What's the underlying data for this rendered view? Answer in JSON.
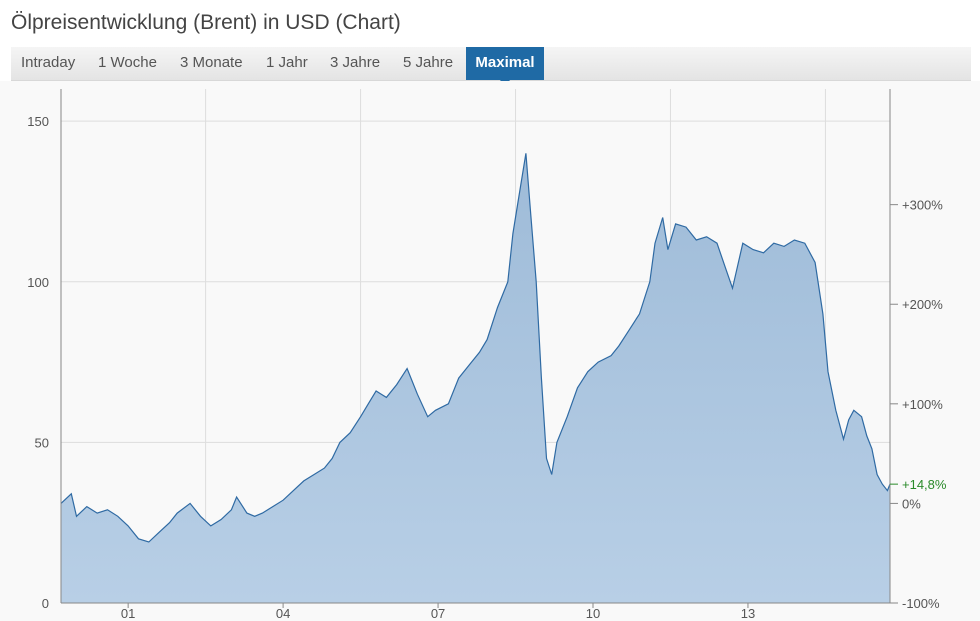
{
  "title": "Ölpreisentwicklung (Brent) in USD (Chart)",
  "tabs": [
    {
      "label": "Intraday",
      "active": false
    },
    {
      "label": "1 Woche",
      "active": false
    },
    {
      "label": "3 Monate",
      "active": false
    },
    {
      "label": "1 Jahr",
      "active": false
    },
    {
      "label": "3 Jahre",
      "active": false
    },
    {
      "label": "5 Jahre",
      "active": false
    },
    {
      "label": "Maximal",
      "active": true
    }
  ],
  "colors": {
    "accent": "#1f6aa5",
    "line": "#2f6aa3",
    "fill": "#a9c3dd",
    "positive": "#2a8a2a"
  },
  "chart_data": {
    "type": "area",
    "title": "",
    "xlabel": "",
    "ylabel": "",
    "x_ticks": [
      "01",
      "04",
      "07",
      "10",
      "13"
    ],
    "y_ticks": [
      0,
      50,
      100,
      150
    ],
    "y_ticks_right": [
      "-100%",
      "0%",
      "+100%",
      "+200%",
      "+300%"
    ],
    "current_change_label": "+14,8%",
    "ylim": [
      0,
      160
    ],
    "xlim": [
      1999.7,
      2015.75
    ],
    "grid": true,
    "series": [
      {
        "x": [
          1999.7,
          1999.9,
          2000.0,
          2000.2,
          2000.4,
          2000.6,
          2000.8,
          2001.0,
          2001.2,
          2001.4,
          2001.6,
          2001.8,
          2001.95,
          2002.2,
          2002.4,
          2002.6,
          2002.8,
          2003.0,
          2003.1,
          2003.3,
          2003.45,
          2003.6,
          2003.8,
          2004.0,
          2004.2,
          2004.4,
          2004.6,
          2004.8,
          2004.95,
          2005.1,
          2005.3,
          2005.5,
          2005.65,
          2005.8,
          2006.0,
          2006.2,
          2006.4,
          2006.6,
          2006.8,
          2006.95,
          2007.2,
          2007.4,
          2007.6,
          2007.8,
          2007.95,
          2008.15,
          2008.35,
          2008.45,
          2008.55,
          2008.7,
          2008.8,
          2008.9,
          2009.0,
          2009.1,
          2009.2,
          2009.3,
          2009.5,
          2009.7,
          2009.9,
          2010.1,
          2010.35,
          2010.5,
          2010.7,
          2010.9,
          2011.1,
          2011.2,
          2011.35,
          2011.45,
          2011.6,
          2011.8,
          2012.0,
          2012.2,
          2012.4,
          2012.55,
          2012.7,
          2012.9,
          2013.1,
          2013.3,
          2013.5,
          2013.7,
          2013.9,
          2014.1,
          2014.3,
          2014.45,
          2014.55,
          2014.7,
          2014.85,
          2014.95,
          2015.05,
          2015.2,
          2015.3,
          2015.4,
          2015.5,
          2015.6,
          2015.7,
          2015.75
        ],
        "y": [
          31,
          34,
          27,
          30,
          28,
          29,
          27,
          24,
          20,
          19,
          22,
          25,
          28,
          31,
          27,
          24,
          26,
          29,
          33,
          28,
          27,
          28,
          30,
          32,
          35,
          38,
          40,
          42,
          45,
          50,
          53,
          58,
          62,
          66,
          64,
          68,
          73,
          65,
          58,
          60,
          62,
          70,
          74,
          78,
          82,
          92,
          100,
          115,
          125,
          140,
          120,
          100,
          70,
          45,
          40,
          50,
          58,
          67,
          72,
          75,
          77,
          80,
          85,
          90,
          100,
          112,
          120,
          110,
          118,
          117,
          113,
          114,
          112,
          105,
          98,
          112,
          110,
          109,
          112,
          111,
          113,
          112,
          106,
          90,
          72,
          60,
          51,
          57,
          60,
          58,
          52,
          48,
          40,
          37,
          35,
          37
        ]
      }
    ]
  }
}
